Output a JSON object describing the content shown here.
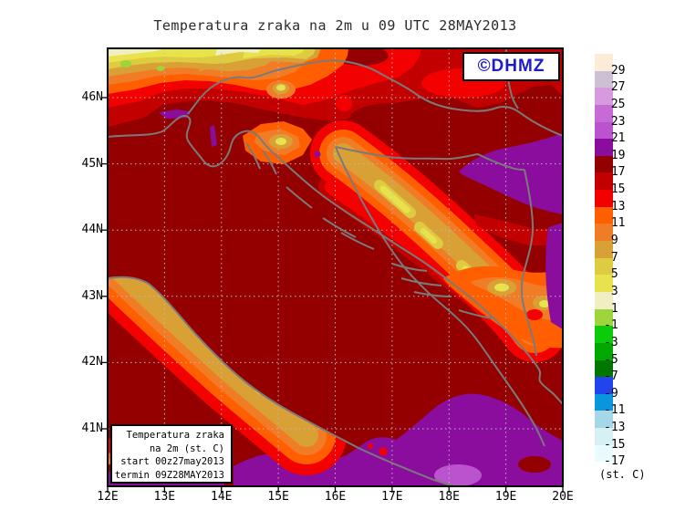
{
  "title": "Temperatura zraka na 2m u 09 UTC 28MAY2013",
  "watermark": {
    "label": "©DHMZ",
    "color": "#1C1CC8"
  },
  "info_box": {
    "lines": [
      "Temperatura zraka",
      "na 2m (st. C)",
      "start 00z27may2013",
      "termin 09Z28MAY2013"
    ]
  },
  "axes": {
    "x_tick_labels": [
      "12E",
      "13E",
      "14E",
      "15E",
      "16E",
      "17E",
      "18E",
      "19E",
      "20E"
    ],
    "y_tick_labels": [
      "46N",
      "45N",
      "44N",
      "43N",
      "42N",
      "41N"
    ]
  },
  "colorbar": {
    "unit_label": "(st. C)",
    "tick_labels": [
      "29",
      "27",
      "25",
      "23",
      "21",
      "19",
      "17",
      "15",
      "13",
      "11",
      "9",
      "7",
      "5",
      "3",
      "1",
      "-1",
      "-3",
      "-5",
      "-7",
      "-9",
      "-11",
      "-13",
      "-15",
      "-17"
    ],
    "cell_colors": [
      "#FCEBD7",
      "#CDC0D4",
      "#D79ADF",
      "#C66AD6",
      "#BC53CE",
      "#8A0D9E",
      "#940000",
      "#C30000",
      "#F30000",
      "#FF5F00",
      "#F07D26",
      "#D9A035",
      "#DFCB3F",
      "#E8E34C",
      "#EFEFC2",
      "#9ED43C",
      "#0ACC0A",
      "#00A800",
      "#007800",
      "#2244EE",
      "#0A96DC",
      "#A6D7E8",
      "#D6F0F4",
      "#EAFBFF",
      "#FFFFFF"
    ]
  },
  "chart_data": {
    "type": "heatmap",
    "title": "Temperatura zraka na 2m u 09 UTC 28MAY2013",
    "x_range": [
      "12E",
      "20E"
    ],
    "y_range": [
      "41N",
      "46N"
    ],
    "contour_levels_c": [
      -17,
      -15,
      -13,
      -11,
      -9,
      -7,
      -5,
      -3,
      -1,
      1,
      3,
      5,
      7,
      9,
      11,
      13,
      15,
      17,
      19,
      21,
      23,
      25,
      27,
      29
    ],
    "unit": "st. C",
    "notes_visible_field": "Adriatic and most land 17-19C (dark red); 19-21C purple patches east Slavonia/Bosnia and south Adriatic; 5-11C yellow-orange bands over Alps (NW corner), Dinaric mountains (NW-SE diagonal), Apennines and SE Bosnia mountains"
  }
}
